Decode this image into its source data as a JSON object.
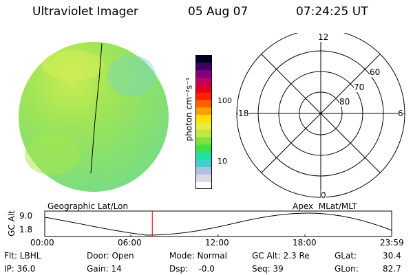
{
  "header": {
    "instrument": "Ultraviolet Imager",
    "date": "05 Aug 07",
    "time": "07:24:25 UT"
  },
  "colorbar": {
    "unit_label": "photon cm⁻²s⁻¹",
    "ticks": [
      "100",
      "10"
    ],
    "colors": [
      "#ffffff",
      "#d8d8e8",
      "#b0c0e0",
      "#40d0d0",
      "#20e0a0",
      "#40e040",
      "#80e040",
      "#c0e840",
      "#e8ec40",
      "#ffe000",
      "#ffa000",
      "#ff6000",
      "#ff2000",
      "#e00020",
      "#c00060",
      "#800080",
      "#400060",
      "#000020"
    ]
  },
  "polar_plot": {
    "lat_labels": [
      "80",
      "70",
      "60"
    ],
    "mlt_labels": {
      "top": "12",
      "left": "18",
      "right": "6",
      "bottom": "0"
    }
  },
  "orbit_panel": {
    "left_title": "Geographic Lat/Lon",
    "right_title": "Apex  MLat/MLT",
    "y_axis_label": "GC Alt",
    "y_ticks": [
      "9.0",
      "1.8"
    ],
    "x_ticks": [
      "00:00",
      "06:00",
      "12:00",
      "18:00",
      "23:59"
    ],
    "current_time_fraction": 0.31
  },
  "info": {
    "filter": "Flt: LBHL",
    "ip": "IP: 36.0",
    "door": "Door: Open",
    "gain": "Gain: 14",
    "mode": "Mode: Normal",
    "dsp": "Dsp:    -0.0",
    "gc_alt": "GC Alt: 2.3 Re",
    "seq": "Seq: 39",
    "glat_label": "GLat:",
    "glat_value": "30.4",
    "glon_label": "GLon:",
    "glon_value": "82.7"
  }
}
